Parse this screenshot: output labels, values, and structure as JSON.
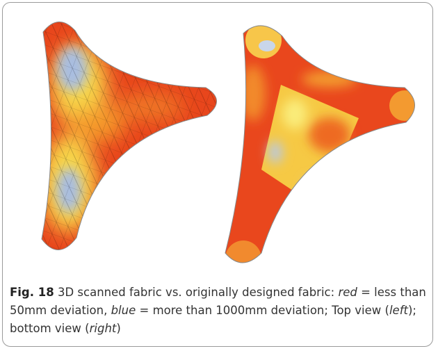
{
  "figure": {
    "label": "Fig. 18",
    "caption": [
      "3D scanned fabric vs. originally designed fabric:",
      "red",
      "= less than 50mm deviation,",
      "blue",
      "= more than 1000mm deviation; Top view (",
      "left",
      "); bottom view (",
      "right",
      ")"
    ]
  }
}
